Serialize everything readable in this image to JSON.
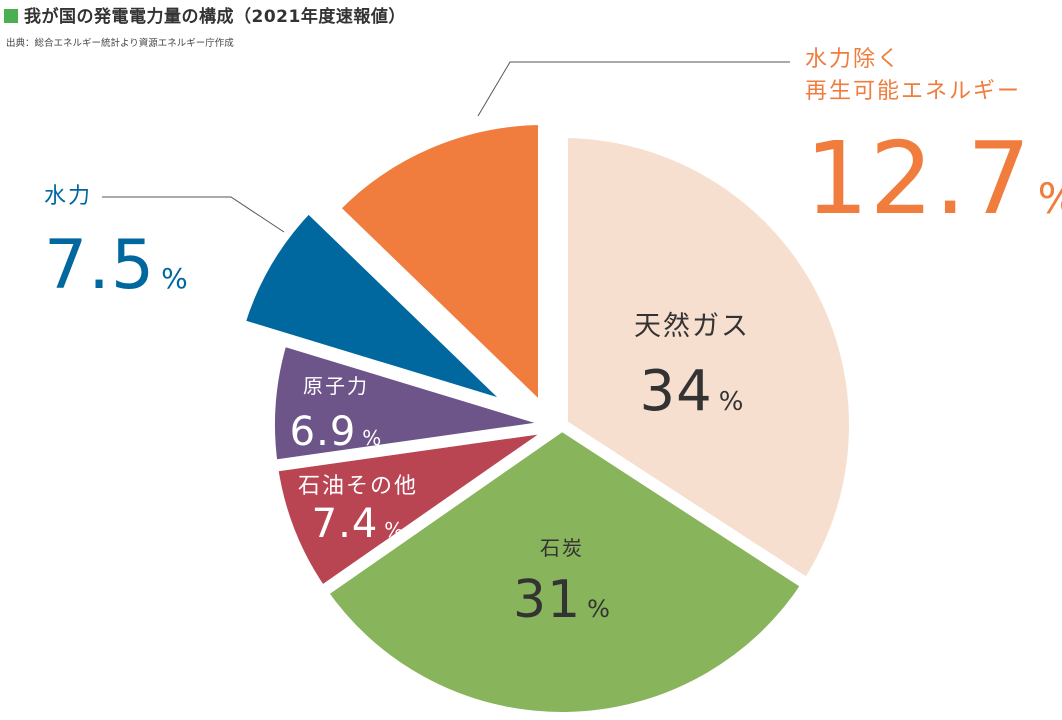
{
  "title": "我が国の発電電力量の構成（2021年度速報値）",
  "source": "出典：総合エネルギー統計より資源エネルギー庁作成",
  "title_marker_color": "#4caf50",
  "percent_sign": "%",
  "chart_data": {
    "type": "pie",
    "start": "12 o'clock, clockwise",
    "series": [
      {
        "label": "天然ガス",
        "value": "34",
        "numeric": 34.0,
        "color": "#f7dfcf",
        "label_color": "#333333",
        "exploded": false
      },
      {
        "label": "石炭",
        "value": "31",
        "numeric": 31.0,
        "color": "#88b45c",
        "label_color": "#333333",
        "exploded": false
      },
      {
        "label": "石油その他",
        "value": "7.4",
        "numeric": 7.4,
        "color": "#b94452",
        "label_color": "#ffffff",
        "exploded": false
      },
      {
        "label": "原子力",
        "value": "6.9",
        "numeric": 6.9,
        "color": "#6d5489",
        "label_color": "#ffffff",
        "exploded": false
      },
      {
        "label": "水力",
        "value": "7.5",
        "numeric": 7.5,
        "color": "#00689f",
        "label_color": "#00689f",
        "exploded": true,
        "callout": true
      },
      {
        "label": "水力除く再生可能エネルギー",
        "label_lines": [
          "水力除く",
          "再生可能エネルギー"
        ],
        "value": "12.7",
        "numeric": 12.7,
        "color": "#f07c3e",
        "label_color": "#f07c3e",
        "exploded": true,
        "callout": true
      }
    ]
  }
}
